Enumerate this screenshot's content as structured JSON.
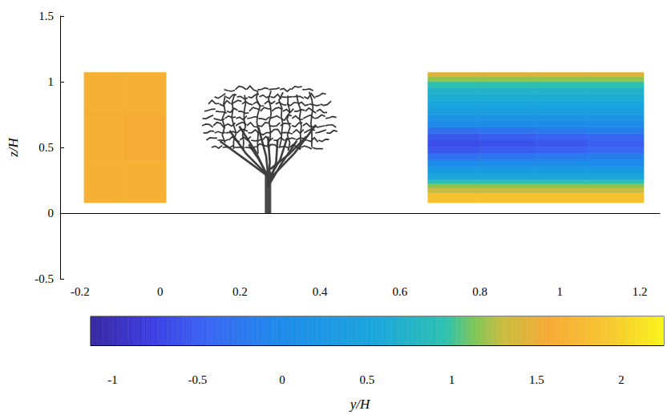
{
  "chart_data": {
    "type": "contour",
    "xlabel": "y/H",
    "ylabel": "z/H",
    "xlim": [
      -0.25,
      1.25
    ],
    "xticks": [
      -0.2,
      0,
      0.2,
      0.4,
      0.6,
      0.8,
      1,
      1.2
    ],
    "ylim": [
      -0.5,
      1.5
    ],
    "yticks": [
      -0.5,
      0,
      0.5,
      1,
      1.5
    ],
    "fields": [
      {
        "x_edges": [
          -0.19,
          -0.09,
          0.015
        ],
        "z_edges": [
          0.08,
          0.4,
          0.75,
          1.07
        ],
        "values": [
          [
            1.65,
            1.65
          ],
          [
            1.65,
            1.6
          ],
          [
            1.65,
            1.65
          ]
        ]
      },
      {
        "x_edges": [
          0.67,
          0.8,
          0.94,
          1.07,
          1.21
        ],
        "z_edges": [
          0.08,
          0.155,
          0.195,
          0.225,
          0.255,
          0.305,
          0.355,
          0.405,
          0.455,
          0.505,
          0.555,
          0.605,
          0.655,
          0.705,
          0.755,
          0.805,
          0.855,
          0.905,
          0.955,
          1.0,
          1.04,
          1.07
        ],
        "values": [
          [
            1.85,
            1.85,
            1.85,
            1.85
          ],
          [
            1.3,
            1.3,
            1.3,
            1.3
          ],
          [
            1.15,
            1.15,
            1.15,
            1.15
          ],
          [
            0.95,
            0.95,
            0.95,
            0.95
          ],
          [
            0.55,
            0.55,
            0.55,
            0.55
          ],
          [
            0.3,
            0.3,
            0.3,
            0.3
          ],
          [
            0.0,
            0.0,
            0.0,
            0.0
          ],
          [
            -0.3,
            -0.25,
            -0.2,
            -0.15
          ],
          [
            -0.55,
            -0.5,
            -0.45,
            -0.4
          ],
          [
            -0.65,
            -0.6,
            -0.55,
            -0.5
          ],
          [
            -0.55,
            -0.5,
            -0.45,
            -0.4
          ],
          [
            -0.3,
            -0.25,
            -0.2,
            -0.15
          ],
          [
            0.0,
            0.0,
            0.0,
            0.0
          ],
          [
            0.2,
            0.2,
            0.2,
            0.2
          ],
          [
            0.4,
            0.4,
            0.4,
            0.4
          ],
          [
            0.55,
            0.55,
            0.55,
            0.55
          ],
          [
            0.65,
            0.65,
            0.65,
            0.65
          ],
          [
            0.75,
            0.75,
            0.75,
            0.75
          ],
          [
            0.95,
            0.95,
            0.95,
            0.95
          ],
          [
            1.18,
            1.18,
            1.18,
            1.18
          ],
          [
            1.45,
            1.45,
            1.45,
            1.45
          ]
        ]
      }
    ],
    "colorbar": {
      "range": [
        -1.13,
        2.25
      ],
      "ticks": [
        -1,
        -0.5,
        0,
        0.5,
        1,
        1.5,
        2
      ]
    }
  }
}
